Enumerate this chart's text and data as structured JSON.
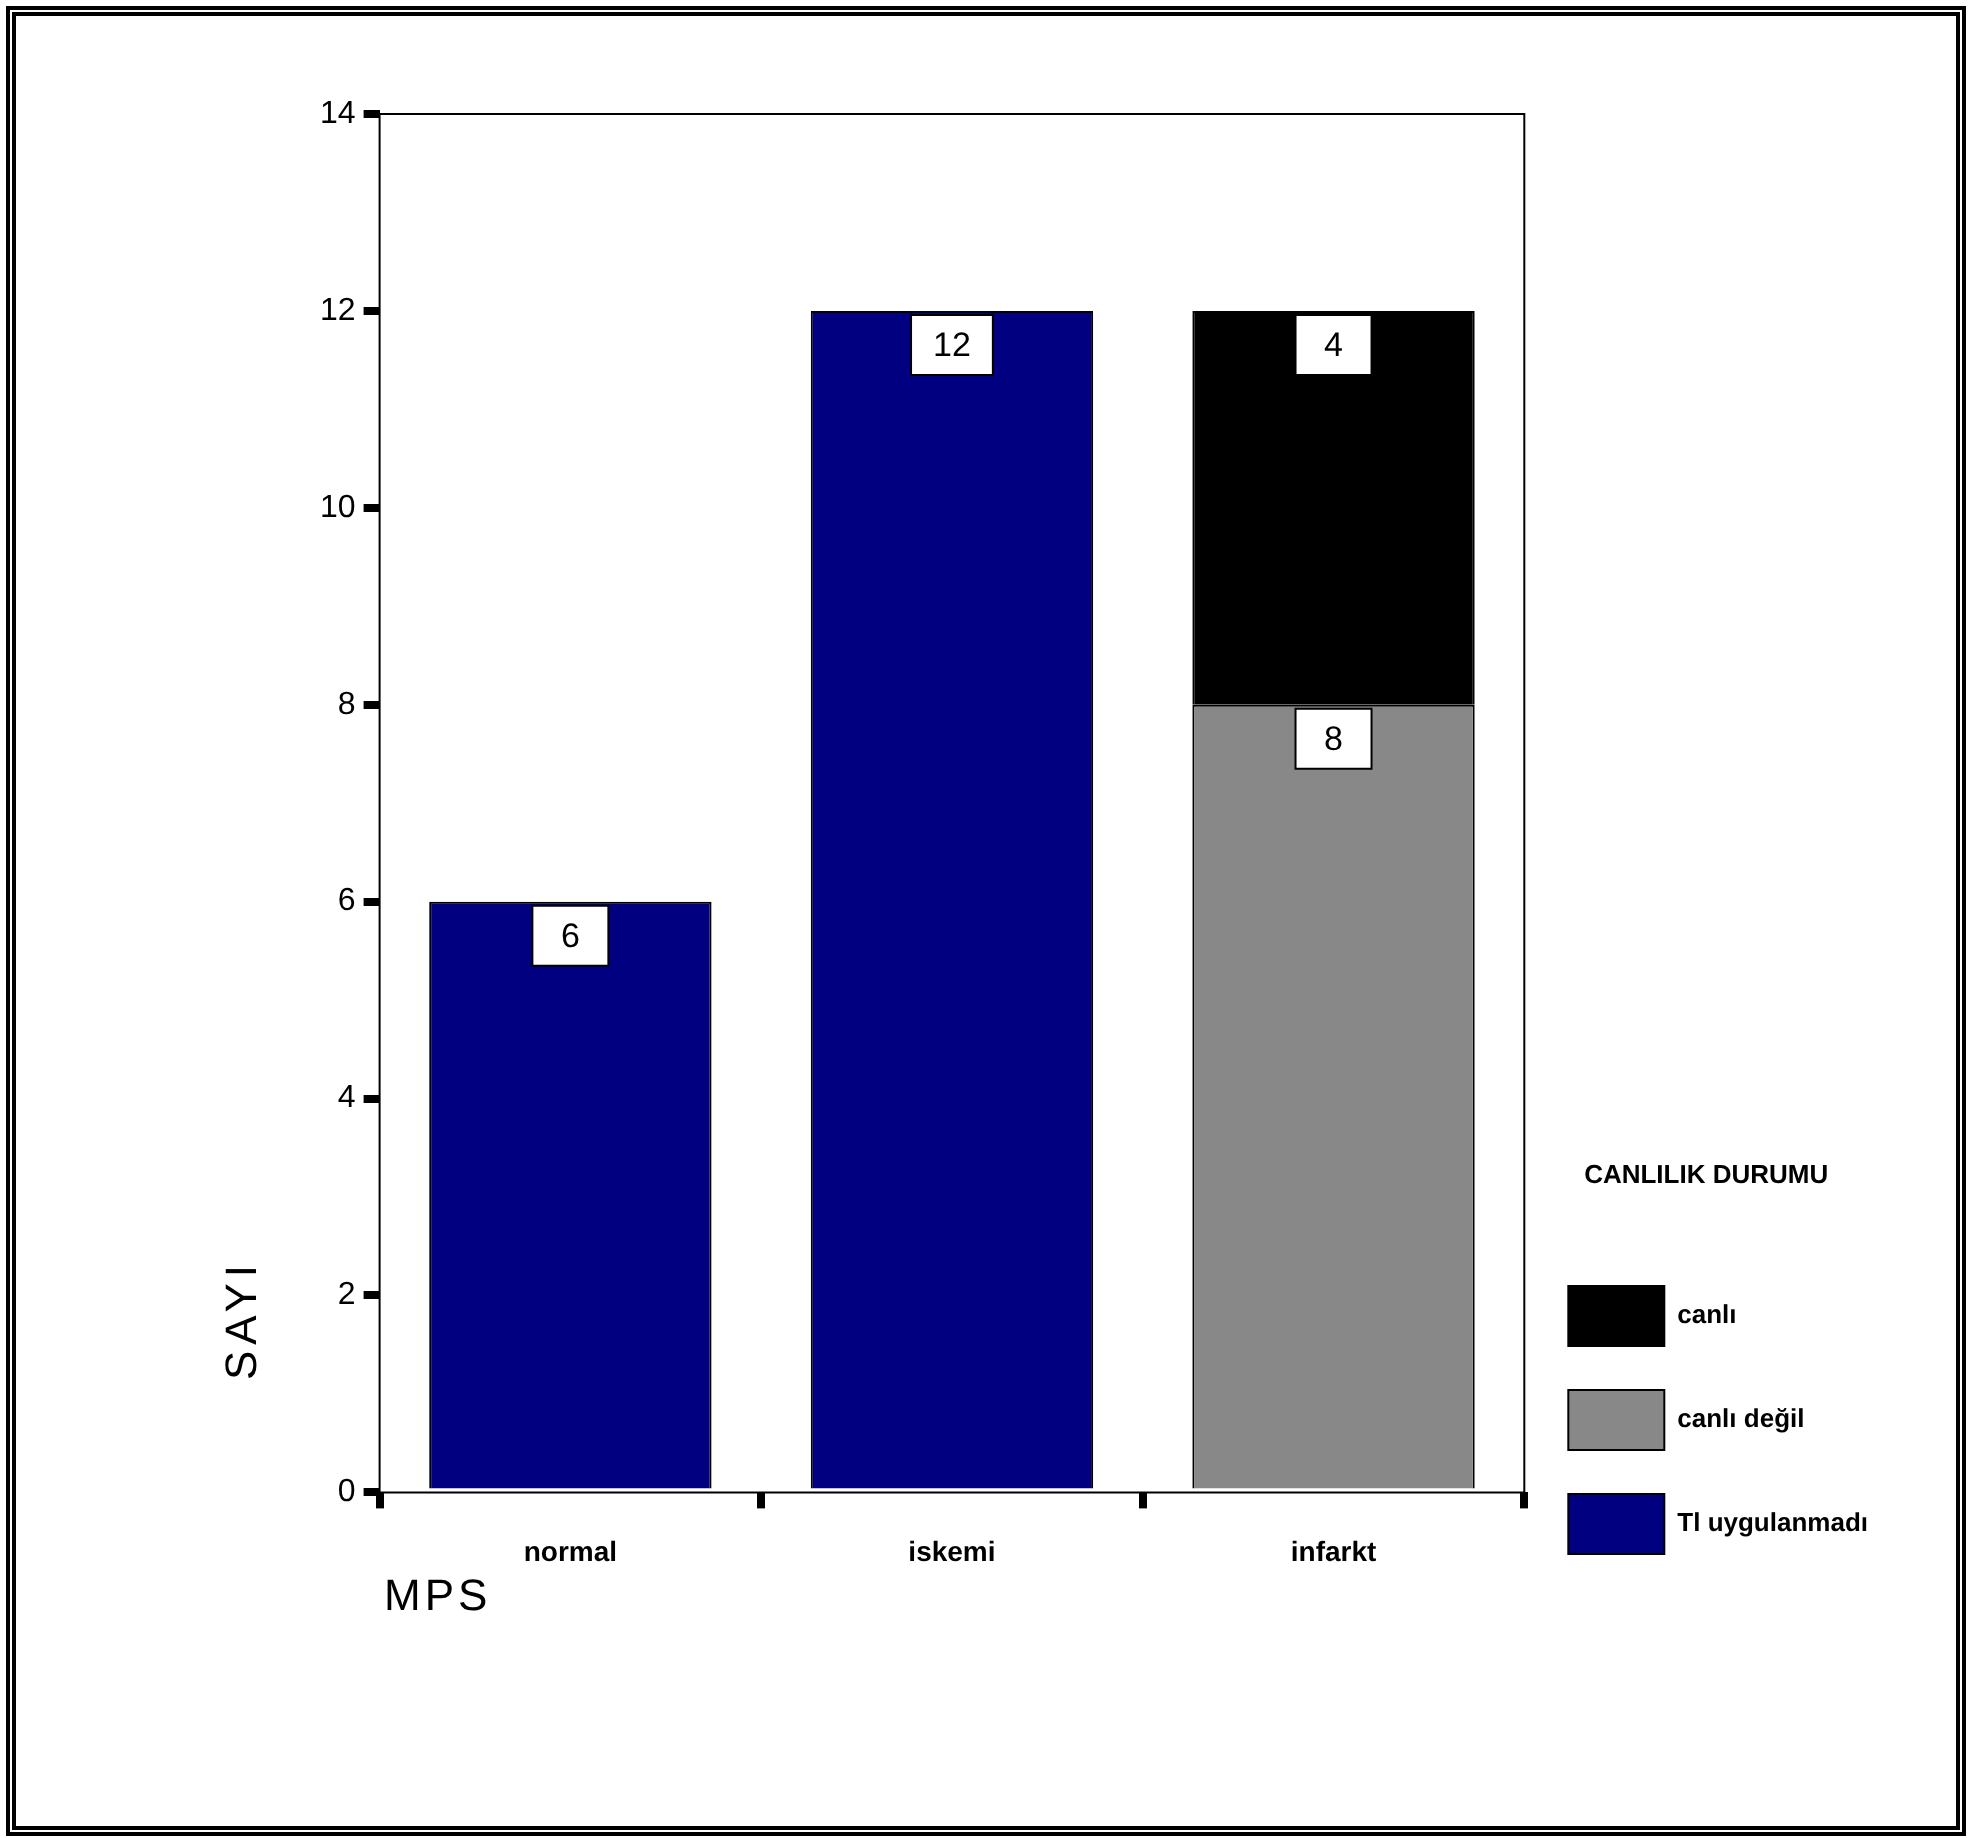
{
  "chart_data": {
    "type": "bar",
    "stacked": true,
    "xlabel": "MPS",
    "ylabel": "SAYI",
    "legend_title": "CANLILIK DURUMU",
    "legend": "right",
    "categories": [
      "normal",
      "iskemi",
      "infarkt"
    ],
    "series": [
      {
        "name": "Tl uygulanmadı",
        "color": "#000080",
        "values": [
          6,
          12,
          null
        ]
      },
      {
        "name": "canlı değil",
        "color": "#888888",
        "values": [
          null,
          null,
          8
        ]
      },
      {
        "name": "canlı",
        "color": "#000000",
        "values": [
          null,
          null,
          4
        ]
      }
    ],
    "ylim": [
      0,
      14
    ],
    "yticks": [
      0,
      2,
      4,
      6,
      8,
      10,
      12,
      14
    ],
    "grid": false,
    "data_labels": true
  }
}
